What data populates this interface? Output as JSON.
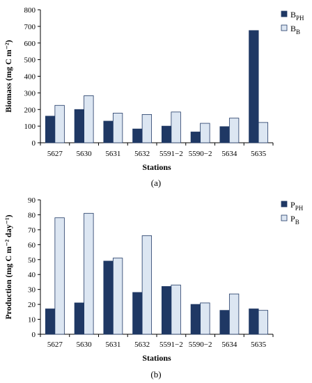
{
  "chart_data": [
    {
      "type": "bar",
      "panel_label": "(a)",
      "categories": [
        "5627",
        "5630",
        "5631",
        "5632",
        "5591−2",
        "5590−2",
        "5634",
        "5635"
      ],
      "series": [
        {
          "name_main": "B",
          "name_sub": "PH",
          "color": "#1f3864",
          "values": [
            160,
            200,
            130,
            83,
            100,
            65,
            97,
            675
          ]
        },
        {
          "name_main": "B",
          "name_sub": "B",
          "color": "#dce6f2",
          "values": [
            225,
            283,
            178,
            170,
            185,
            117,
            148,
            122
          ]
        }
      ],
      "xlabel": "Stations",
      "ylabel": "Biomass (mg C m⁻²)",
      "ylim": [
        0,
        800
      ],
      "yticks": [
        0,
        100,
        200,
        300,
        400,
        500,
        600,
        700,
        800
      ],
      "grid": false,
      "legend": "top-right"
    },
    {
      "type": "bar",
      "panel_label": "(b)",
      "categories": [
        "5627",
        "5630",
        "5631",
        "5632",
        "5591−2",
        "5590−2",
        "5634",
        "5635"
      ],
      "series": [
        {
          "name_main": "P",
          "name_sub": "PH",
          "color": "#1f3864",
          "values": [
            17,
            21,
            49,
            28,
            32,
            20,
            16,
            17
          ]
        },
        {
          "name_main": "P",
          "name_sub": "B",
          "color": "#dce6f2",
          "values": [
            78,
            81,
            51,
            66,
            33,
            21,
            27,
            16
          ]
        }
      ],
      "xlabel": "Stations",
      "ylabel": "Production (mg C m⁻² day⁻¹)",
      "ylim": [
        0,
        90
      ],
      "yticks": [
        0,
        10,
        20,
        30,
        40,
        50,
        60,
        70,
        80,
        90
      ],
      "grid": false,
      "legend": "top-right"
    }
  ]
}
